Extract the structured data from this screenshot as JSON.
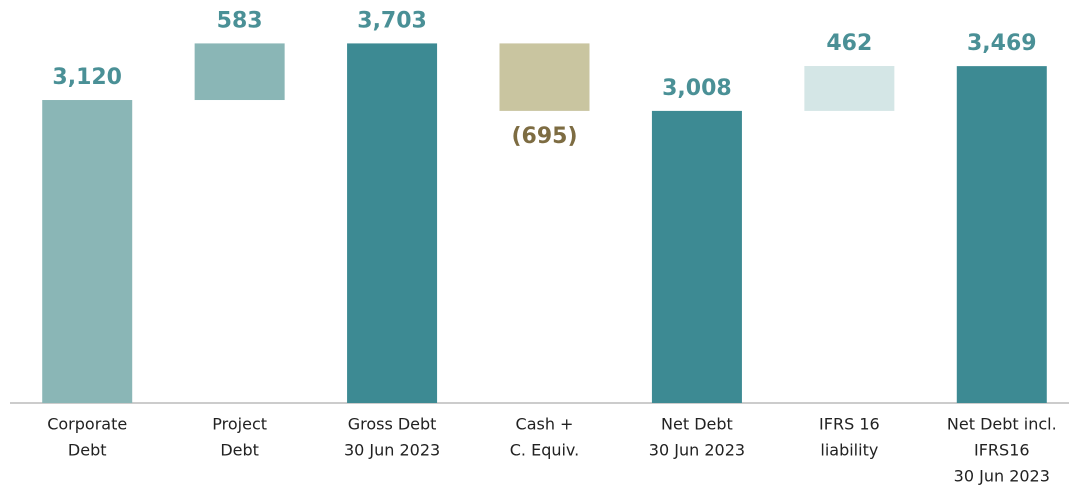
{
  "chart_data": {
    "type": "waterfall",
    "categories": [
      [
        "Corporate",
        "Debt"
      ],
      [
        "Project",
        "Debt"
      ],
      [
        "Gross Debt",
        "30 Jun 2023"
      ],
      [
        "Cash +",
        "C. Equiv."
      ],
      [
        "Net Debt",
        "30 Jun 2023"
      ],
      [
        "IFRS 16",
        "liability"
      ],
      [
        "Net Debt incl.",
        "IFRS16",
        "30 Jun 2023"
      ]
    ],
    "values": [
      3120,
      583,
      3703,
      -695,
      3008,
      462,
      3469
    ],
    "value_labels": [
      "3,120",
      "583",
      "3,703",
      "(695)",
      "3,008",
      "462",
      "3,469"
    ],
    "totals": [
      false,
      false,
      true,
      false,
      true,
      false,
      true
    ],
    "colors": [
      "#8ab6b6",
      "#8ab6b6",
      "#3d8a93",
      "#c9c5a0",
      "#3d8a93",
      "#d4e6e6",
      "#3d8a93"
    ],
    "label_color": "#4a9096",
    "negative_label_color": "#7d6c42",
    "ylim": [
      0,
      4150
    ]
  }
}
